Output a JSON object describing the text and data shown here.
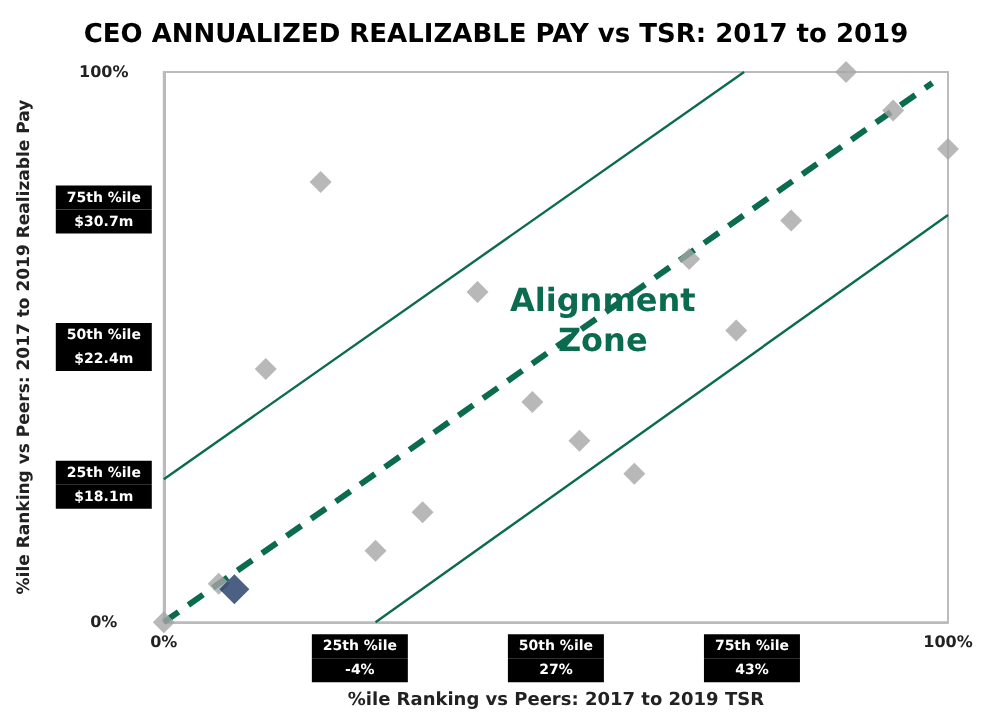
{
  "chart_data": {
    "type": "scatter",
    "title": "CEO ANNUALIZED REALIZABLE PAY vs TSR: 2017 to 2019",
    "xlabel": "%ile Ranking vs Peers: 2017 to 2019 TSR",
    "ylabel": "%ile Ranking vs Peers: 2017 to 2019 Realizable Pay",
    "annotations": [
      "Alignment\nZone"
    ],
    "xlim": [
      0,
      100
    ],
    "ylim": [
      0,
      100
    ],
    "xticks": [
      {
        "value": 0,
        "label": "0%"
      },
      {
        "value": 25,
        "label": "25th %ile\n-4%"
      },
      {
        "value": 50,
        "label": "50th %ile\n27%"
      },
      {
        "value": 75,
        "label": "75th %ile\n43%"
      },
      {
        "value": 100,
        "label": "100%"
      }
    ],
    "yticks": [
      {
        "value": 0,
        "label": "0%"
      },
      {
        "value": 25,
        "label": "25th %ile\n$18.1m"
      },
      {
        "value": 50,
        "label": "50th %ile\n$22.4m"
      },
      {
        "value": 75,
        "label": "75th %ile\n$30.7m"
      },
      {
        "value": 100,
        "label": "100%"
      }
    ],
    "grid": false,
    "marker": "diamond",
    "series": [
      {
        "type": "line",
        "color": "#0b6b4f",
        "line_style": "solid",
        "marker": "none",
        "x": [
          0,
          74
        ],
        "values": [
          26,
          100
        ]
      },
      {
        "type": "line",
        "color": "#0b6b4f",
        "line_style": "dashed",
        "marker": "none",
        "x": [
          0,
          98
        ],
        "values": [
          0,
          98
        ]
      },
      {
        "type": "line",
        "color": "#0b6b4f",
        "line_style": "solid",
        "marker": "none",
        "x": [
          27,
          100
        ],
        "values": [
          0,
          74
        ]
      },
      {
        "type": "scatter",
        "color": "#a6a6a6",
        "x": [
          0,
          7,
          13,
          20,
          27,
          33,
          40,
          47,
          53,
          60,
          67,
          73,
          80,
          87,
          93,
          100
        ],
        "values": [
          0,
          7,
          46,
          80,
          13,
          20,
          60,
          40,
          33,
          27,
          66,
          53,
          73,
          100,
          93,
          86
        ]
      },
      {
        "type": "scatter",
        "color": "#1f3864",
        "x": [
          9
        ],
        "values": [
          6
        ]
      }
    ]
  }
}
